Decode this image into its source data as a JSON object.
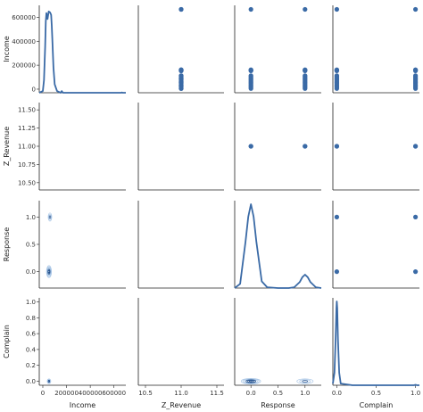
{
  "chart_data": {
    "type": "pairplot",
    "variables": [
      "Income",
      "Z_Revenue",
      "Response",
      "Complain"
    ],
    "axes": {
      "Income": {
        "ticks": [
          0,
          200000,
          400000,
          600000
        ],
        "tick_labels": [
          "0",
          "200000",
          "400000",
          "600000"
        ],
        "range": [
          -30000,
          700000
        ]
      },
      "Z_Revenue": {
        "ticks": [
          10.5,
          11.0,
          11.5
        ],
        "tick_labels": [
          "10.5",
          "11.0",
          "11.5"
        ],
        "y_ticks": [
          10.5,
          10.75,
          11.0,
          11.25,
          11.5
        ],
        "y_tick_labels": [
          "10.50",
          "10.75",
          "11.00",
          "11.25",
          "11.50"
        ],
        "range": [
          10.4,
          11.6
        ]
      },
      "Response": {
        "ticks": [
          0.0,
          0.5,
          1.0
        ],
        "tick_labels": [
          "0.0",
          "0.5",
          "1.0"
        ],
        "range": [
          -0.3,
          1.3
        ]
      },
      "Complain": {
        "ticks": [
          0.0,
          0.5,
          1.0
        ],
        "tick_labels": [
          "0.0",
          "0.5",
          "1.0"
        ],
        "y_ticks": [
          0.0,
          0.2,
          0.4,
          0.6,
          0.8,
          1.0
        ],
        "y_tick_labels": [
          "0.0",
          "0.2",
          "0.4",
          "0.6",
          "0.8",
          "1.0"
        ],
        "range": [
          -0.05,
          1.05
        ]
      }
    },
    "scatter": {
      "Income": [
        5000,
        15000,
        25000,
        35000,
        45000,
        55000,
        65000,
        75000,
        85000,
        95000,
        105000,
        113000,
        153000,
        157000,
        160000,
        162000,
        666666
      ],
      "Z_Revenue": [
        11.0,
        11.0
      ],
      "Response": [
        0.0,
        1.0
      ],
      "Complain": [
        0.0,
        1.0
      ]
    },
    "kde_diagonals": [
      {
        "variable": "Income",
        "x": [
          -30000,
          0,
          10000,
          20000,
          25000,
          30000,
          40000,
          50000,
          60000,
          70000,
          75000,
          80000,
          90000,
          100000,
          120000,
          150000,
          160000,
          170000,
          200000,
          660000,
          666666,
          672000,
          700000
        ],
        "density": [
          0,
          0.02,
          0.15,
          0.55,
          0.85,
          0.95,
          0.88,
          0.97,
          0.96,
          0.93,
          0.8,
          0.65,
          0.3,
          0.1,
          0.02,
          0.0,
          0.02,
          0.0,
          0,
          0,
          0.003,
          0,
          0
        ]
      },
      {
        "variable": "Response",
        "x": [
          -0.3,
          -0.2,
          -0.1,
          -0.05,
          0.0,
          0.05,
          0.1,
          0.2,
          0.3,
          0.5,
          0.7,
          0.8,
          0.9,
          0.95,
          1.0,
          1.05,
          1.1,
          1.2,
          1.3
        ],
        "density": [
          0.0,
          0.05,
          0.55,
          0.85,
          1.0,
          0.85,
          0.55,
          0.08,
          0.01,
          0.0,
          0.0,
          0.01,
          0.07,
          0.13,
          0.16,
          0.13,
          0.07,
          0.01,
          0.0
        ]
      },
      {
        "variable": "Complain",
        "x": [
          -0.05,
          -0.03,
          -0.015,
          -0.005,
          0.0,
          0.005,
          0.015,
          0.03,
          0.05,
          0.2,
          0.6,
          0.98,
          1.0,
          1.02,
          1.05
        ],
        "density": [
          0.02,
          0.15,
          0.55,
          0.92,
          1.0,
          0.92,
          0.55,
          0.15,
          0.02,
          0.0,
          0.0,
          0.0,
          0.005,
          0.0,
          0.0
        ]
      }
    ],
    "kde_contours": [
      {
        "x_var": "Income",
        "y_var": "Response",
        "centers": [
          {
            "x": 52000,
            "y": 0.0,
            "rx": [
              3000,
              6000,
              9000,
              12000,
              15000,
              18000,
              21000
            ],
            "ry": [
              0.015,
              0.03,
              0.045,
              0.06,
              0.075,
              0.09,
              0.11
            ]
          },
          {
            "x": 60000,
            "y": 1.0,
            "rx": [
              5000,
              10000,
              15000
            ],
            "ry": [
              0.025,
              0.05,
              0.075
            ]
          }
        ]
      },
      {
        "x_var": "Income",
        "y_var": "Complain",
        "centers": [
          {
            "x": 52000,
            "y": 0.0,
            "rx": [
              3000,
              6000,
              9000,
              12000,
              15000
            ],
            "ry": [
              0.006,
              0.012,
              0.018,
              0.024,
              0.03
            ]
          }
        ]
      },
      {
        "x_var": "Response",
        "y_var": "Complain",
        "centers": [
          {
            "x": 0.0,
            "y": 0.0,
            "rx": [
              0.03,
              0.06,
              0.09,
              0.12,
              0.15,
              0.18
            ],
            "ry": [
              0.006,
              0.012,
              0.018,
              0.024,
              0.03,
              0.036
            ]
          },
          {
            "x": 1.0,
            "y": 0.0,
            "rx": [
              0.05,
              0.1,
              0.15
            ],
            "ry": [
              0.01,
              0.02,
              0.03
            ]
          }
        ]
      }
    ],
    "colors": {
      "marker": "#3a6aa6",
      "kde_line": "#3a6aa6",
      "contour_dark": "#1f4e8c",
      "contour_light": "#a9c6e6",
      "spine": "#222222"
    },
    "grid": false
  }
}
